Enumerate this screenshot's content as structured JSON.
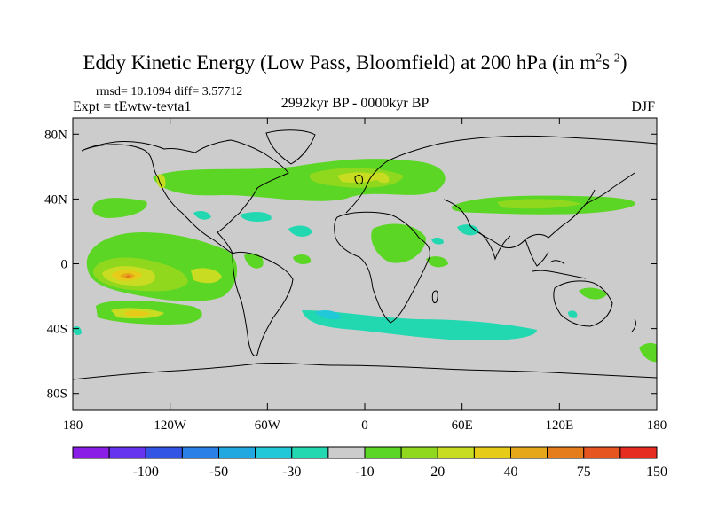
{
  "title": {
    "main": "Eddy Kinetic Energy (Low Pass, Bloomfield) at 200 hPa (in m",
    "sup1": "2",
    "mid": "s",
    "sup2": "-2",
    "close": ")"
  },
  "stats_text": "rmsd= 10.1094 diff= 3.57712",
  "experiment_text": "Expt = tEwtw-tevta1",
  "period_text": "2992kyr BP - 0000kyr BP",
  "season_text": "DJF",
  "map": {
    "projection": "cylindrical-equidistant",
    "lon_range": [
      -180,
      180
    ],
    "lat_range": [
      -90,
      90
    ],
    "lat_ticks": [
      {
        "value": 80,
        "label": "80N"
      },
      {
        "value": 40,
        "label": "40N"
      },
      {
        "value": 0,
        "label": "0"
      },
      {
        "value": -40,
        "label": "40S"
      },
      {
        "value": -80,
        "label": "80S"
      }
    ],
    "lon_ticks": [
      {
        "value": -180,
        "label": "180"
      },
      {
        "value": -120,
        "label": "120W"
      },
      {
        "value": -60,
        "label": "60W"
      },
      {
        "value": 0,
        "label": "0"
      },
      {
        "value": 60,
        "label": "60E"
      },
      {
        "value": 120,
        "label": "120E"
      },
      {
        "value": 180,
        "label": "180"
      }
    ],
    "background_color": "#cccccc"
  },
  "colorbar": {
    "colors": [
      "#8a1ee6",
      "#6633ee",
      "#3355e6",
      "#2a80e6",
      "#22a8e0",
      "#20c8d8",
      "#22d8b0",
      "#cccccc",
      "#5cd625",
      "#8fd81e",
      "#c8dc22",
      "#e6cc18",
      "#e6a81a",
      "#e67d1c",
      "#e65420",
      "#e62c20"
    ],
    "labels": [
      {
        "boundary": 2,
        "text": "-100"
      },
      {
        "boundary": 4,
        "text": "-50"
      },
      {
        "boundary": 6,
        "text": "-30"
      },
      {
        "boundary": 8,
        "text": "-10"
      },
      {
        "boundary": 10,
        "text": "20"
      },
      {
        "boundary": 12,
        "text": "40"
      },
      {
        "boundary": 14,
        "text": "75"
      },
      {
        "boundary": 16,
        "text": "150"
      }
    ]
  }
}
